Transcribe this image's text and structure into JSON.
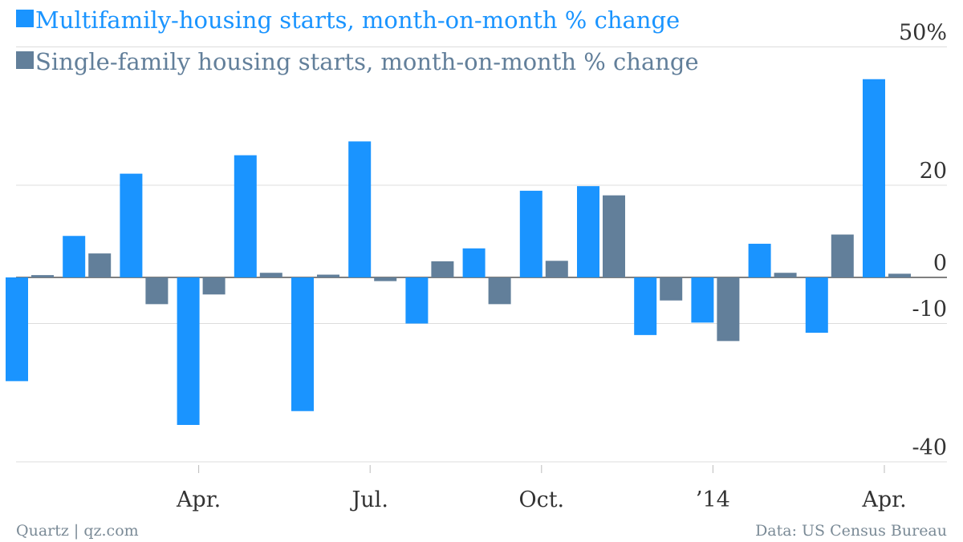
{
  "chart_data": {
    "type": "bar",
    "x": [
      "2013-01",
      "2013-02",
      "2013-03",
      "2013-04",
      "2013-05",
      "2013-06",
      "2013-07",
      "2013-08",
      "2013-09",
      "2013-10",
      "2013-11",
      "2013-12",
      "2014-01",
      "2014-02",
      "2014-03",
      "2014-04"
    ],
    "series": [
      {
        "name": "Multifamily-housing starts, month-on-month % change",
        "color": "#1a94ff",
        "values": [
          -22.5,
          9,
          22.5,
          -32,
          26.5,
          -29,
          29.5,
          -10,
          6.3,
          18.8,
          19.8,
          -12.5,
          -9.8,
          7.3,
          -12,
          43
        ]
      },
      {
        "name": "Single-family housing starts, month-on-month % change",
        "color": "#627f9a",
        "values": [
          0.5,
          5.2,
          -5.8,
          -3.7,
          1,
          0.6,
          -0.8,
          3.5,
          -5.8,
          3.6,
          17.8,
          -5,
          -13.8,
          1,
          9.3,
          0.8
        ]
      }
    ],
    "y_ticks": [
      {
        "value": 50,
        "label": "50%"
      },
      {
        "value": 20,
        "label": "20"
      },
      {
        "value": 0,
        "label": "0"
      },
      {
        "value": -10,
        "label": "-10"
      },
      {
        "value": -40,
        "label": "-40"
      }
    ],
    "x_ticks": [
      {
        "x": "2013-04",
        "label": "Apr."
      },
      {
        "x": "2013-07",
        "label": "Jul."
      },
      {
        "x": "2013-10",
        "label": "Oct."
      },
      {
        "x": "2014-01",
        "label": "’14"
      },
      {
        "x": "2014-04",
        "label": "Apr."
      }
    ],
    "ylim": [
      -40,
      50
    ],
    "grid": true,
    "legend_position": "top-left"
  },
  "footer": {
    "source_left": "Quartz | qz.com",
    "source_right": "Data: US Census Bureau"
  }
}
